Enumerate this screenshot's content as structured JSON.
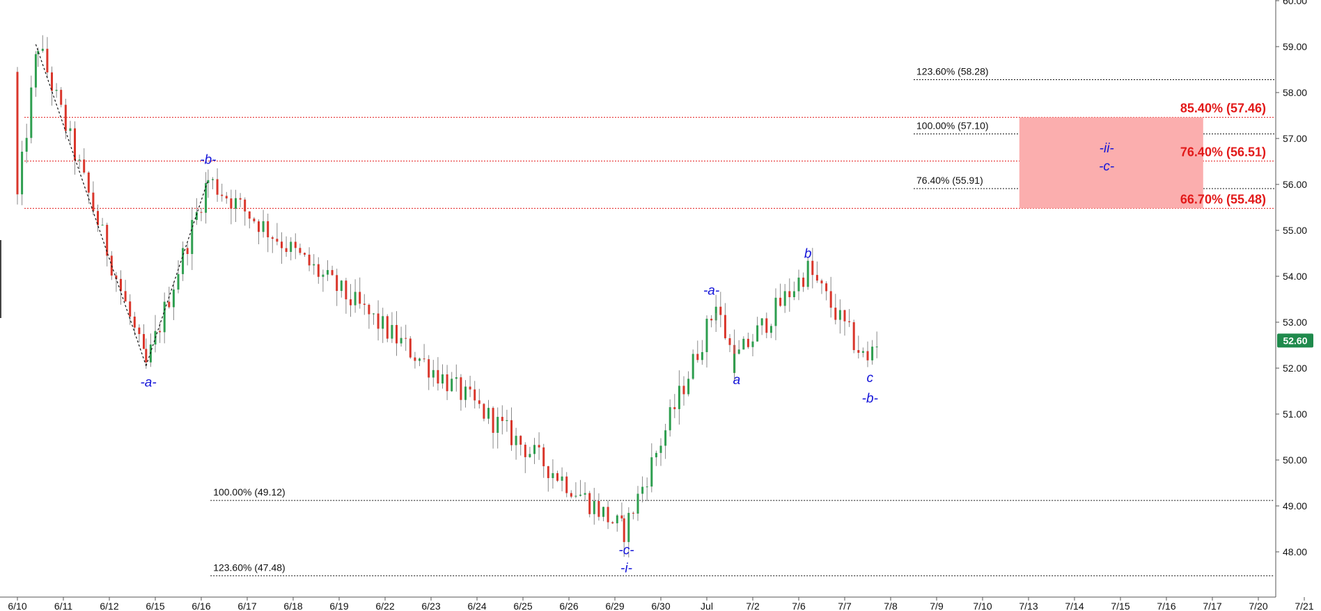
{
  "chart_data": {
    "type": "candlestick",
    "y_axis": {
      "min": 47.0,
      "max": 60.0,
      "ticks": [
        "48.00",
        "49.00",
        "50.00",
        "51.00",
        "52.00",
        "53.00",
        "54.00",
        "55.00",
        "56.00",
        "57.00",
        "58.00",
        "59.00",
        "60.00"
      ],
      "side": "right"
    },
    "x_axis": {
      "labels": [
        "6/10",
        "6/11",
        "6/12",
        "6/15",
        "6/16",
        "6/17",
        "6/18",
        "6/19",
        "6/22",
        "6/23",
        "6/24",
        "6/25",
        "6/26",
        "6/29",
        "6/30",
        "Jul",
        "7/2",
        "7/6",
        "7/7",
        "7/8",
        "7/9",
        "7/10",
        "7/13",
        "7/14",
        "7/15",
        "7/16",
        "7/17",
        "7/20",
        "7/21"
      ]
    },
    "last_price": {
      "value": 52.6,
      "label": "52.60",
      "color": "#1f8a4c"
    },
    "swing_points": [
      {
        "day": 0.45,
        "price": 59.05
      },
      {
        "day": 2.8,
        "price": 52.05
      },
      {
        "day": 4.15,
        "price": 56.1
      },
      {
        "day": 13.2,
        "price": 48.45
      },
      {
        "day": 15.2,
        "price": 53.35
      },
      {
        "day": 15.6,
        "price": 52.15
      },
      {
        "day": 17.2,
        "price": 54.15
      },
      {
        "day": 18.5,
        "price": 52.1
      }
    ],
    "fib_levels_black": [
      {
        "label": "123.60% (58.28)",
        "price": 58.28,
        "start_day": 19.5
      },
      {
        "label": "100.00% (57.10)",
        "price": 57.1,
        "start_day": 19.5
      },
      {
        "label": "76.40% (55.91)",
        "price": 55.91,
        "start_day": 19.5
      },
      {
        "label": "100.00% (49.12)",
        "price": 49.12,
        "start_day": 4.2
      },
      {
        "label": "123.60% (47.48)",
        "price": 47.48,
        "start_day": 4.2
      }
    ],
    "fib_levels_red": [
      {
        "label": "85.40% (57.46)",
        "price": 57.46
      },
      {
        "label": "76.40% (56.51)",
        "price": 56.51
      },
      {
        "label": "66.70% (55.48)",
        "price": 55.48
      }
    ],
    "target_zone": {
      "from_price": 55.48,
      "to_price": 57.46,
      "start_day": 21.8,
      "end_day": 25.8,
      "color": "#fbaeae"
    },
    "wave_labels": [
      {
        "text": "-a-",
        "day": 2.85,
        "price": 51.6
      },
      {
        "text": "-b-",
        "day": 4.15,
        "price": 56.45
      },
      {
        "text": "-c-",
        "day": 13.25,
        "price": 47.95
      },
      {
        "text": "-i-",
        "day": 13.25,
        "price": 47.55
      },
      {
        "text": "-a-",
        "day": 15.1,
        "price": 53.6
      },
      {
        "text": "a",
        "day": 15.65,
        "price": 51.65
      },
      {
        "text": "b",
        "day": 17.2,
        "price": 54.4
      },
      {
        "text": "c",
        "day": 18.55,
        "price": 51.7
      },
      {
        "text": "-b-",
        "day": 18.55,
        "price": 51.25
      },
      {
        "text": "-ii-",
        "day": 23.7,
        "price": 56.7
      },
      {
        "text": "-c-",
        "day": 23.7,
        "price": 56.3
      }
    ],
    "zigzag": [
      {
        "day": 0.4,
        "price": 59.05
      },
      {
        "day": 2.8,
        "price": 52.05
      },
      {
        "day": 4.15,
        "price": 56.1
      }
    ]
  }
}
